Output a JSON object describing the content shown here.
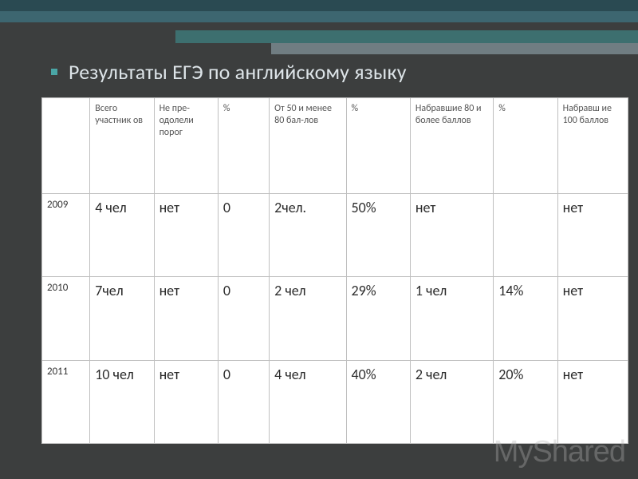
{
  "title": "Результаты  ЕГЭ по английскому языку",
  "watermark": "MyShared",
  "colors": {
    "background": "#3c3e3e",
    "accent": "#3d8a8a",
    "title_text": "#dde4e8",
    "table_bg": "#ffffff",
    "border": "#bfbfbf"
  },
  "table": {
    "type": "table",
    "columns": [
      "",
      "Всего участник ов",
      "Не пре- одолели порог",
      "%",
      "От 50 и менее 80 бал-лов",
      "%",
      "Набравшие 80 и более баллов",
      "%",
      "Набравш ие 100 баллов"
    ],
    "rows": [
      {
        "year": "2009",
        "c1": "4 чел",
        "c2": "нет",
        "c3": "0",
        "c4": "2чел.",
        "c5": "50%",
        "c6": "нет",
        "c7": "",
        "c8": "нет"
      },
      {
        "year": "2010",
        "c1": "7чел",
        "c2": "нет",
        "c3": "0",
        "c4": "2 чел",
        "c5": "29%",
        "c6": "1 чел",
        "c7": "14%",
        "c8": "нет"
      },
      {
        "year": "2011",
        "c1": "10 чел",
        "c2": "нет",
        "c3": "0",
        "c4": "4 чел",
        "c5": "40%",
        "c6": "2 чел",
        "c7": "20%",
        "c8": "нет"
      }
    ],
    "header_fontsize": 12,
    "cell_fontsize": 18,
    "year_fontsize": 13
  }
}
